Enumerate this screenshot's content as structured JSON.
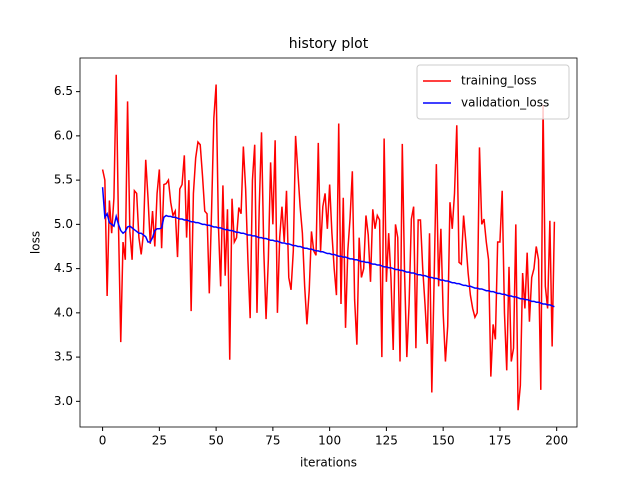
{
  "chart_data": {
    "type": "line",
    "title": "history plot",
    "x_label": "iterations",
    "y_label": "loss",
    "x": [
      0,
      1,
      2,
      3,
      4,
      5,
      6,
      7,
      8,
      9,
      10,
      11,
      12,
      13,
      14,
      15,
      16,
      17,
      18,
      19,
      20,
      21,
      22,
      23,
      24,
      25,
      26,
      27,
      28,
      29,
      30,
      31,
      32,
      33,
      34,
      35,
      36,
      37,
      38,
      39,
      40,
      41,
      42,
      43,
      44,
      45,
      46,
      47,
      48,
      49,
      50,
      51,
      52,
      53,
      54,
      55,
      56,
      57,
      58,
      59,
      60,
      61,
      62,
      63,
      64,
      65,
      66,
      67,
      68,
      69,
      70,
      71,
      72,
      73,
      74,
      75,
      76,
      77,
      78,
      79,
      80,
      81,
      82,
      83,
      84,
      85,
      86,
      87,
      88,
      89,
      90,
      91,
      92,
      93,
      94,
      95,
      96,
      97,
      98,
      99,
      100,
      101,
      102,
      103,
      104,
      105,
      106,
      107,
      108,
      109,
      110,
      111,
      112,
      113,
      114,
      115,
      116,
      117,
      118,
      119,
      120,
      121,
      122,
      123,
      124,
      125,
      126,
      127,
      128,
      129,
      130,
      131,
      132,
      133,
      134,
      135,
      136,
      137,
      138,
      139,
      140,
      141,
      142,
      143,
      144,
      145,
      146,
      147,
      148,
      149,
      150,
      151,
      152,
      153,
      154,
      155,
      156,
      157,
      158,
      159,
      160,
      161,
      162,
      163,
      164,
      165,
      166,
      167,
      168,
      169,
      170,
      171,
      172,
      173,
      174,
      175,
      176,
      177,
      178,
      179,
      180,
      181,
      182,
      183,
      184,
      185,
      186,
      187,
      188,
      189,
      190,
      191,
      192,
      193,
      194,
      195,
      196,
      197,
      198,
      199
    ],
    "series": [
      {
        "name": "training_loss",
        "color": "#ff0000",
        "values": [
          5.62,
          5.5,
          4.19,
          5.27,
          4.9,
          5.3,
          6.69,
          5.0,
          3.67,
          4.8,
          4.6,
          6.39,
          4.92,
          4.6,
          5.38,
          5.35,
          4.85,
          4.66,
          4.9,
          5.73,
          5.3,
          4.78,
          5.15,
          4.75,
          5.35,
          5.62,
          4.73,
          5.45,
          5.46,
          5.5,
          5.25,
          5.1,
          5.15,
          4.63,
          5.4,
          5.45,
          5.78,
          4.85,
          5.5,
          4.02,
          5.35,
          5.75,
          5.93,
          5.9,
          5.55,
          5.15,
          5.12,
          4.22,
          5.15,
          6.2,
          6.58,
          5.0,
          4.3,
          5.44,
          4.42,
          5.17,
          3.47,
          5.29,
          4.8,
          4.85,
          5.19,
          5.12,
          5.88,
          5.4,
          4.6,
          3.94,
          5.5,
          5.9,
          4.0,
          5.2,
          6.04,
          4.7,
          3.93,
          4.6,
          5.7,
          5.0,
          5.95,
          4.0,
          4.85,
          5.2,
          4.8,
          5.38,
          4.4,
          4.26,
          4.7,
          6.0,
          5.6,
          5.2,
          4.9,
          4.3,
          3.87,
          4.25,
          4.92,
          4.7,
          4.65,
          5.92,
          4.7,
          5.2,
          5.35,
          4.95,
          5.45,
          4.9,
          4.5,
          4.2,
          6.14,
          4.1,
          5.3,
          3.83,
          4.7,
          5.07,
          5.6,
          4.15,
          3.64,
          4.85,
          4.4,
          4.5,
          5.1,
          4.88,
          4.35,
          5.17,
          4.95,
          5.1,
          5.05,
          3.5,
          5.97,
          4.35,
          4.9,
          4.4,
          3.58,
          5.0,
          4.85,
          3.45,
          5.91,
          4.45,
          3.5,
          4.1,
          5.06,
          5.2,
          3.6,
          5.05,
          5.05,
          4.5,
          4.1,
          3.65,
          4.9,
          3.1,
          4.35,
          5.68,
          4.3,
          4.95,
          4.0,
          3.45,
          3.85,
          5.25,
          4.95,
          5.35,
          6.12,
          4.57,
          4.55,
          5.1,
          4.8,
          4.45,
          4.2,
          4.05,
          3.95,
          4.0,
          5.87,
          5.0,
          5.06,
          4.8,
          4.6,
          3.28,
          3.87,
          3.7,
          4.8,
          4.8,
          5.38,
          4.0,
          3.35,
          4.52,
          3.45,
          3.6,
          5.0,
          2.9,
          3.18,
          4.45,
          4.05,
          4.68,
          3.9,
          4.4,
          4.5,
          4.75,
          4.6,
          3.13,
          6.35,
          4.3,
          4.05,
          5.04,
          3.62,
          5.03
        ]
      },
      {
        "name": "validation_loss",
        "color": "#0000ff",
        "values": [
          5.42,
          5.08,
          5.12,
          5.02,
          5.0,
          4.98,
          5.09,
          5.0,
          4.93,
          4.9,
          4.92,
          4.97,
          4.98,
          4.96,
          4.94,
          4.92,
          4.9,
          4.9,
          4.88,
          4.86,
          4.8,
          4.8,
          4.85,
          4.93,
          4.95,
          4.95,
          4.96,
          5.08,
          5.1,
          5.09,
          5.09,
          5.08,
          5.08,
          5.07,
          5.06,
          5.06,
          5.05,
          5.05,
          5.04,
          5.03,
          5.03,
          5.02,
          5.02,
          5.01,
          5.0,
          5.0,
          4.99,
          4.99,
          4.98,
          4.97,
          4.97,
          4.96,
          4.96,
          4.95,
          4.94,
          4.94,
          4.93,
          4.93,
          4.92,
          4.91,
          4.91,
          4.9,
          4.9,
          4.89,
          4.88,
          4.88,
          4.87,
          4.87,
          4.86,
          4.85,
          4.85,
          4.84,
          4.84,
          4.83,
          4.82,
          4.82,
          4.81,
          4.81,
          4.8,
          4.79,
          4.79,
          4.78,
          4.78,
          4.77,
          4.76,
          4.76,
          4.75,
          4.75,
          4.74,
          4.73,
          4.73,
          4.72,
          4.72,
          4.71,
          4.7,
          4.7,
          4.69,
          4.69,
          4.68,
          4.67,
          4.67,
          4.66,
          4.66,
          4.65,
          4.64,
          4.64,
          4.63,
          4.63,
          4.62,
          4.61,
          4.61,
          4.6,
          4.6,
          4.59,
          4.58,
          4.58,
          4.57,
          4.57,
          4.56,
          4.55,
          4.55,
          4.54,
          4.54,
          4.53,
          4.52,
          4.52,
          4.51,
          4.51,
          4.5,
          4.49,
          4.49,
          4.48,
          4.48,
          4.47,
          4.46,
          4.46,
          4.45,
          4.45,
          4.44,
          4.43,
          4.43,
          4.42,
          4.42,
          4.41,
          4.4,
          4.4,
          4.39,
          4.39,
          4.38,
          4.37,
          4.37,
          4.36,
          4.36,
          4.35,
          4.34,
          4.34,
          4.33,
          4.33,
          4.32,
          4.31,
          4.31,
          4.3,
          4.3,
          4.29,
          4.28,
          4.28,
          4.27,
          4.27,
          4.26,
          4.25,
          4.25,
          4.24,
          4.24,
          4.23,
          4.22,
          4.22,
          4.21,
          4.21,
          4.2,
          4.19,
          4.19,
          4.18,
          4.18,
          4.17,
          4.16,
          4.16,
          4.15,
          4.15,
          4.14,
          4.13,
          4.13,
          4.12,
          4.12,
          4.11,
          4.1,
          4.1,
          4.09,
          4.09,
          4.08,
          4.07
        ]
      }
    ],
    "xlim": [
      -9.95,
      208.95
    ],
    "ylim": [
      2.71,
      6.88
    ],
    "xticks": [
      0,
      25,
      50,
      75,
      100,
      125,
      150,
      175,
      200
    ],
    "yticks": [
      {
        "value": 3,
        "label": "3.0"
      },
      3.5,
      {
        "value": 4,
        "label": "4.0"
      },
      4.5,
      {
        "value": 5,
        "label": "5.0"
      },
      5.5,
      {
        "value": 6,
        "label": "6.0"
      },
      6.5
    ],
    "legend": "upper right",
    "grid": false
  }
}
